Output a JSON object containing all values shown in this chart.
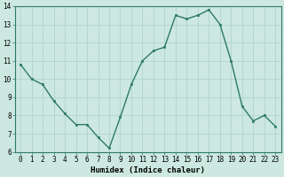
{
  "x": [
    0,
    1,
    2,
    3,
    4,
    5,
    6,
    7,
    8,
    9,
    10,
    11,
    12,
    13,
    14,
    15,
    16,
    17,
    18,
    19,
    20,
    21,
    22,
    23
  ],
  "y": [
    10.8,
    10.0,
    9.7,
    8.8,
    8.1,
    7.5,
    7.5,
    6.8,
    6.2,
    7.9,
    9.7,
    11.0,
    11.55,
    11.75,
    13.5,
    13.3,
    13.5,
    13.8,
    13.0,
    11.0,
    8.5,
    7.7,
    8.0,
    7.4
  ],
  "line_color": "#2d7a6a",
  "marker": "s",
  "marker_size": 2.0,
  "bg_color": "#cce8e0",
  "grid_color": "#b0d4cc",
  "xlabel": "Humidex (Indice chaleur)",
  "ylim": [
    6,
    14
  ],
  "xlim_min": -0.5,
  "xlim_max": 23.5,
  "yticks": [
    6,
    7,
    8,
    9,
    10,
    11,
    12,
    13,
    14
  ],
  "xticks": [
    0,
    1,
    2,
    3,
    4,
    5,
    6,
    7,
    8,
    9,
    10,
    11,
    12,
    13,
    14,
    15,
    16,
    17,
    18,
    19,
    20,
    21,
    22,
    23
  ],
  "xlabel_fontsize": 6.5,
  "tick_fontsize": 5.5,
  "line_width": 1.0
}
